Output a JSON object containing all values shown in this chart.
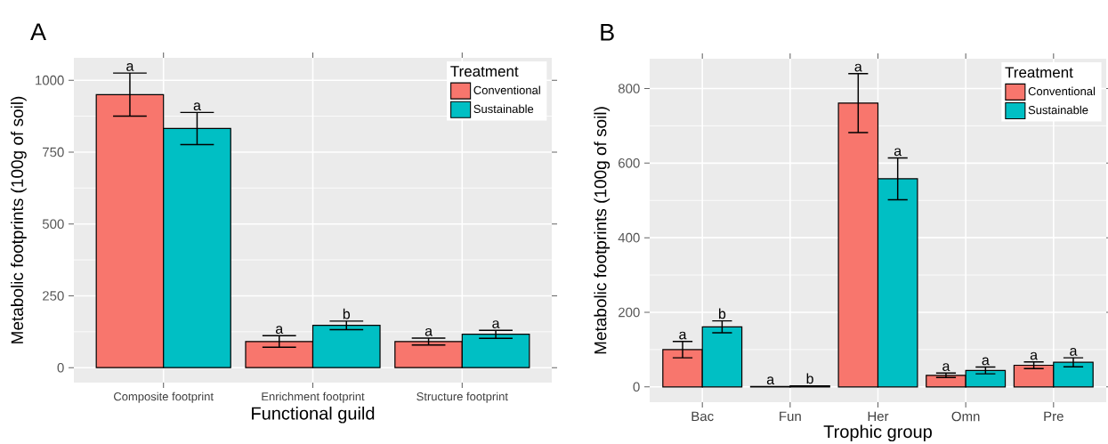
{
  "chart_data": [
    {
      "type": "bar",
      "title": "A",
      "xlabel": "Functional guild",
      "ylabel": "Metabolic footprints (100g of soil)",
      "legend_title": "Treatment",
      "categories": [
        "Composite footprint",
        "Enrichment footprint",
        "Structure footprint"
      ],
      "series": [
        {
          "name": "Conventional",
          "color": "#f8766d",
          "values": [
            950,
            91,
            91
          ],
          "errors": [
            75,
            20,
            12
          ],
          "value_labels": [
            "a",
            "a",
            "a"
          ]
        },
        {
          "name": "Sustainable",
          "color": "#00bfc4",
          "values": [
            832,
            147,
            116
          ],
          "errors": [
            56,
            15,
            14
          ],
          "value_labels": [
            "a",
            "b",
            "a"
          ]
        }
      ],
      "ylim": [
        -52,
        1078
      ],
      "yticks": [
        0,
        250,
        500,
        750,
        1000
      ],
      "grid": true,
      "legend": "top right"
    },
    {
      "type": "bar",
      "title": "B",
      "xlabel": "Trophic group",
      "ylabel": "Metabolic footprints (100g of soil)",
      "legend_title": "Treatment",
      "categories": [
        "Bac",
        "Fun",
        "Her",
        "Omn",
        "Pre"
      ],
      "series": [
        {
          "name": "Conventional",
          "color": "#f8766d",
          "values": [
            100,
            1,
            761,
            31,
            58
          ],
          "errors": [
            22,
            null,
            79,
            6,
            9
          ],
          "value_labels": [
            "a",
            "a",
            "a",
            "a",
            "a"
          ]
        },
        {
          "name": "Sustainable",
          "color": "#00bfc4",
          "values": [
            161,
            3,
            558,
            44,
            66
          ],
          "errors": [
            16,
            null,
            56,
            9,
            12
          ],
          "value_labels": [
            "b",
            "b",
            "a",
            "a",
            "a"
          ]
        }
      ],
      "ylim": [
        -41,
        880
      ],
      "yticks": [
        0,
        200,
        400,
        600,
        800
      ],
      "grid": true,
      "legend": "top right"
    }
  ]
}
